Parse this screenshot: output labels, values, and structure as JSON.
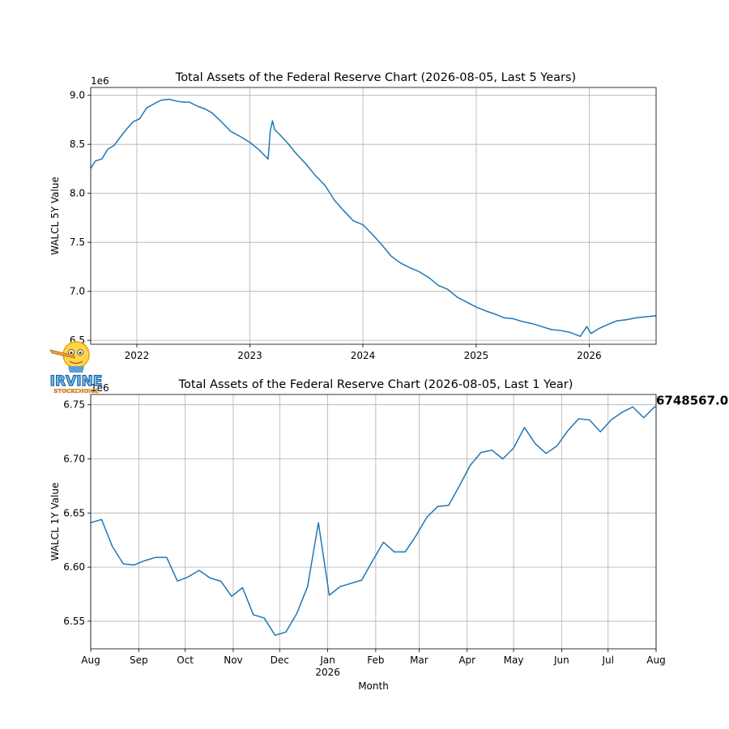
{
  "colors": {
    "line": "#1f77b4",
    "grid": "#b0b0b0",
    "axis": "#000000"
  },
  "logo": {
    "text_line1": "IRVINE",
    "text_line2": "STOCKCHOICE"
  },
  "chart_data": [
    {
      "type": "line",
      "title": "Total Assets of the Federal Reserve Chart (2026-08-05, Last 5 Years)",
      "xlabel": "",
      "ylabel": "WALCL 5Y Value",
      "offset_text": "1e6",
      "y_scale_factor": 1000000,
      "grid": true,
      "xlim": [
        "2021-08-05",
        "2026-08-05"
      ],
      "ylim": [
        6.46,
        9.08
      ],
      "yticks": [
        6.5,
        7.0,
        7.5,
        8.0,
        8.5,
        9.0
      ],
      "ytick_labels": [
        "6.5",
        "7.0",
        "7.5",
        "8.0",
        "8.5",
        "9.0"
      ],
      "xticks": [
        "2022-01-01",
        "2023-01-01",
        "2024-01-01",
        "2025-01-01",
        "2026-01-01"
      ],
      "xtick_labels": [
        "2022",
        "2023",
        "2024",
        "2025",
        "2026"
      ],
      "series": [
        {
          "x": [
            "2021-08-04",
            "2021-08-20",
            "2021-09-10",
            "2021-09-29",
            "2021-10-20",
            "2021-11-10",
            "2021-11-30",
            "2021-12-20",
            "2022-01-10",
            "2022-02-01",
            "2022-03-01",
            "2022-03-20",
            "2022-04-15",
            "2022-05-10",
            "2022-06-01",
            "2022-06-20",
            "2022-07-15",
            "2022-08-10",
            "2022-09-01",
            "2022-10-01",
            "2022-11-01",
            "2022-12-01",
            "2023-01-01",
            "2023-02-01",
            "2023-03-01",
            "2023-03-08",
            "2023-03-15",
            "2023-03-22",
            "2023-04-01",
            "2023-05-01",
            "2023-06-01",
            "2023-07-01",
            "2023-08-01",
            "2023-09-01",
            "2023-10-01",
            "2023-11-01",
            "2023-12-01",
            "2024-01-01",
            "2024-02-01",
            "2024-03-01",
            "2024-04-01",
            "2024-05-01",
            "2024-06-01",
            "2024-07-01",
            "2024-08-01",
            "2024-09-01",
            "2024-10-01",
            "2024-11-01",
            "2024-12-01",
            "2025-01-01",
            "2025-02-01",
            "2025-03-01",
            "2025-04-01",
            "2025-05-01",
            "2025-06-01",
            "2025-07-01",
            "2025-08-01",
            "2025-09-01",
            "2025-10-01",
            "2025-11-01",
            "2025-12-03",
            "2025-12-24",
            "2026-01-07",
            "2026-02-01",
            "2026-03-01",
            "2026-04-01",
            "2026-05-01",
            "2026-06-01",
            "2026-07-01",
            "2026-08-05"
          ],
          "values": [
            8.25,
            8.33,
            8.35,
            8.45,
            8.49,
            8.58,
            8.66,
            8.73,
            8.76,
            8.87,
            8.92,
            8.95,
            8.96,
            8.94,
            8.93,
            8.93,
            8.89,
            8.86,
            8.82,
            8.73,
            8.63,
            8.58,
            8.52,
            8.44,
            8.35,
            8.64,
            8.74,
            8.65,
            8.62,
            8.52,
            8.4,
            8.3,
            8.18,
            8.08,
            7.93,
            7.82,
            7.72,
            7.68,
            7.58,
            7.48,
            7.36,
            7.29,
            7.24,
            7.2,
            7.14,
            7.06,
            7.02,
            6.94,
            6.89,
            6.84,
            6.8,
            6.77,
            6.73,
            6.72,
            6.69,
            6.67,
            6.64,
            6.61,
            6.6,
            6.58,
            6.54,
            6.64,
            6.57,
            6.62,
            6.66,
            6.7,
            6.71,
            6.73,
            6.74,
            6.75
          ]
        }
      ]
    },
    {
      "type": "line",
      "title": "Total Assets of the Federal Reserve Chart (2026-08-05, Last 1 Year)",
      "xlabel": "Month",
      "ylabel": "WALCL 1Y Value",
      "offset_text": "1e6",
      "y_scale_factor": 1000000,
      "grid": true,
      "xlim": [
        "2025-08-01",
        "2026-08-01"
      ],
      "ylim": [
        6.5245,
        6.7595
      ],
      "yticks": [
        6.55,
        6.6,
        6.65,
        6.7,
        6.75
      ],
      "ytick_labels": [
        "6.55",
        "6.60",
        "6.65",
        "6.70",
        "6.75"
      ],
      "xticks": [
        "2025-08-01",
        "2025-09-01",
        "2025-10-01",
        "2025-11-01",
        "2025-12-01",
        "2026-01-01",
        "2026-02-01",
        "2026-03-01",
        "2026-04-01",
        "2026-05-01",
        "2026-06-01",
        "2026-07-01",
        "2026-08-01"
      ],
      "xtick_labels": [
        "Aug",
        "Sep",
        "Oct",
        "Nov",
        "Dec",
        "Jan",
        "Feb",
        "Mar",
        "Apr",
        "May",
        "Jun",
        "Jul",
        "Aug"
      ],
      "year_label": "2026",
      "last_value_label": "6748567.0",
      "series": [
        {
          "x": [
            "2025-08-01",
            "2025-08-08",
            "2025-08-15",
            "2025-08-22",
            "2025-08-29",
            "2025-09-05",
            "2025-09-12",
            "2025-09-19",
            "2025-09-26",
            "2025-10-03",
            "2025-10-10",
            "2025-10-17",
            "2025-10-24",
            "2025-10-31",
            "2025-11-07",
            "2025-11-14",
            "2025-11-21",
            "2025-11-28",
            "2025-12-05",
            "2025-12-12",
            "2025-12-19",
            "2025-12-26",
            "2026-01-02",
            "2026-01-09",
            "2026-01-16",
            "2026-01-23",
            "2026-01-30",
            "2026-02-06",
            "2026-02-13",
            "2026-02-20",
            "2026-02-27",
            "2026-03-06",
            "2026-03-13",
            "2026-03-20",
            "2026-03-27",
            "2026-04-03",
            "2026-04-10",
            "2026-04-17",
            "2026-04-24",
            "2026-05-01",
            "2026-05-08",
            "2026-05-15",
            "2026-05-22",
            "2026-05-29",
            "2026-06-05",
            "2026-06-12",
            "2026-06-19",
            "2026-06-26",
            "2026-07-03",
            "2026-07-10",
            "2026-07-17",
            "2026-07-24",
            "2026-07-31",
            "2026-08-01"
          ],
          "values": [
            6.641,
            6.644,
            6.619,
            6.603,
            6.602,
            6.606,
            6.609,
            6.609,
            6.587,
            6.591,
            6.597,
            6.59,
            6.587,
            6.573,
            6.581,
            6.556,
            6.553,
            6.537,
            6.54,
            6.557,
            6.582,
            6.641,
            6.574,
            6.582,
            6.585,
            6.588,
            6.606,
            6.623,
            6.614,
            6.614,
            6.629,
            6.646,
            6.656,
            6.657,
            6.675,
            6.694,
            6.706,
            6.708,
            6.7,
            6.71,
            6.729,
            6.714,
            6.705,
            6.712,
            6.726,
            6.737,
            6.736,
            6.725,
            6.736,
            6.743,
            6.748,
            6.738,
            6.748,
            6.748
          ]
        }
      ]
    }
  ]
}
